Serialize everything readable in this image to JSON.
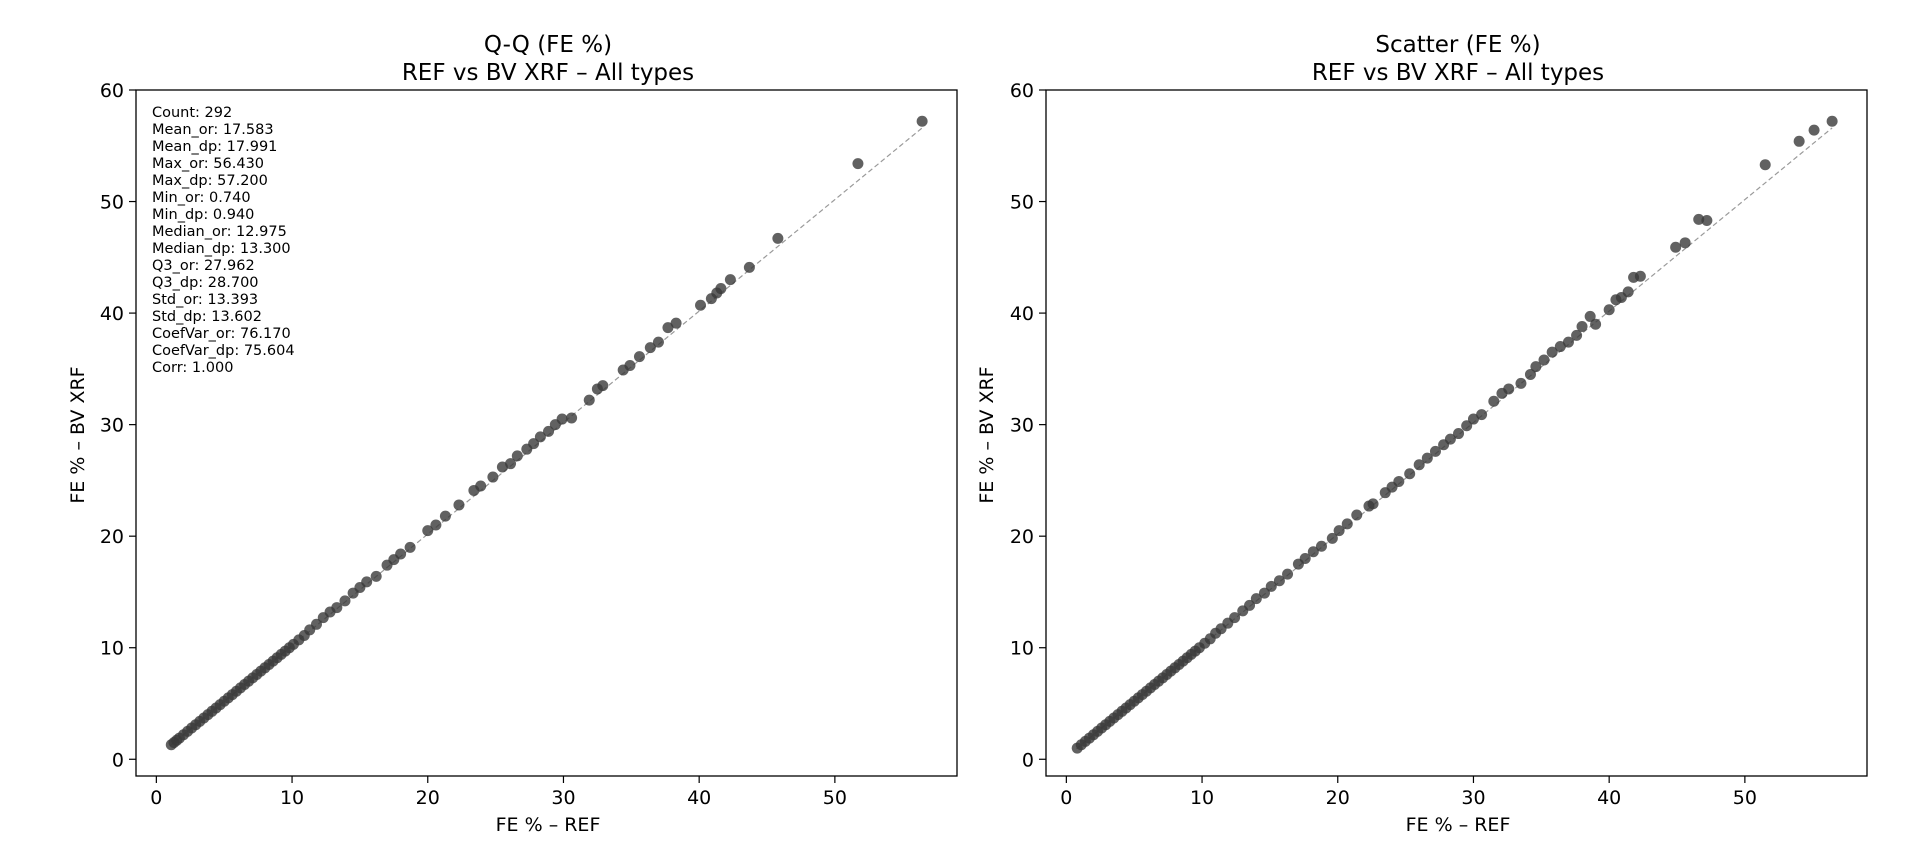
{
  "colors": {
    "marker": "#3a3a3a",
    "reference_line": "#9a9a9a",
    "axes": "#000000"
  },
  "chart_data": [
    {
      "type": "scatter",
      "variant": "qq",
      "title_line1": "Q-Q (FE %)",
      "title_line2": "REF vs BV XRF – All types",
      "xlabel": "FE % – REF",
      "ylabel": "FE % – BV XRF",
      "xlim": [
        -1.5,
        59.0
      ],
      "ylim": [
        -1.5,
        60.0
      ],
      "xticks": [
        0,
        10,
        20,
        30,
        40,
        50
      ],
      "yticks": [
        0,
        10,
        20,
        30,
        40,
        50,
        60
      ],
      "reference_line": [
        [
          1.0,
          1.2
        ],
        [
          56.43,
          56.6
        ]
      ],
      "stats": [
        "Count: 292",
        "Mean_or: 17.583",
        "Mean_dp: 17.991",
        "Max_or: 56.430",
        "Max_dp: 57.200",
        "Min_or: 0.740",
        "Min_dp: 0.940",
        "Median_or: 12.975",
        "Median_dp: 13.300",
        "Q3_or: 27.962",
        "Q3_dp: 28.700",
        "Std_or: 13.393",
        "Std_dp: 13.602",
        "CoefVar_or: 76.170",
        "CoefVar_dp: 75.604",
        "Corr: 1.000"
      ],
      "points": [
        [
          1.1,
          1.3
        ],
        [
          1.3,
          1.5
        ],
        [
          1.5,
          1.7
        ],
        [
          1.7,
          1.9
        ],
        [
          2.0,
          2.2
        ],
        [
          2.3,
          2.5
        ],
        [
          2.6,
          2.8
        ],
        [
          2.9,
          3.1
        ],
        [
          3.2,
          3.4
        ],
        [
          3.5,
          3.7
        ],
        [
          3.8,
          4.0
        ],
        [
          4.1,
          4.3
        ],
        [
          4.4,
          4.6
        ],
        [
          4.7,
          4.9
        ],
        [
          5.0,
          5.2
        ],
        [
          5.3,
          5.5
        ],
        [
          5.6,
          5.8
        ],
        [
          5.9,
          6.1
        ],
        [
          6.2,
          6.4
        ],
        [
          6.5,
          6.7
        ],
        [
          6.8,
          7.0
        ],
        [
          7.1,
          7.3
        ],
        [
          7.4,
          7.6
        ],
        [
          7.7,
          7.9
        ],
        [
          8.0,
          8.2
        ],
        [
          8.3,
          8.5
        ],
        [
          8.6,
          8.8
        ],
        [
          8.9,
          9.1
        ],
        [
          9.2,
          9.4
        ],
        [
          9.5,
          9.7
        ],
        [
          9.8,
          10.0
        ],
        [
          10.1,
          10.3
        ],
        [
          10.5,
          10.7
        ],
        [
          10.9,
          11.1
        ],
        [
          11.3,
          11.6
        ],
        [
          11.8,
          12.1
        ],
        [
          12.3,
          12.7
        ],
        [
          12.8,
          13.2
        ],
        [
          13.3,
          13.6
        ],
        [
          13.9,
          14.2
        ],
        [
          14.5,
          14.9
        ],
        [
          15.0,
          15.4
        ],
        [
          15.5,
          15.9
        ],
        [
          16.2,
          16.4
        ],
        [
          17.0,
          17.4
        ],
        [
          17.5,
          17.9
        ],
        [
          18.0,
          18.4
        ],
        [
          18.7,
          19.0
        ],
        [
          20.0,
          20.5
        ],
        [
          20.6,
          21.0
        ],
        [
          21.3,
          21.8
        ],
        [
          22.3,
          22.8
        ],
        [
          23.4,
          24.1
        ],
        [
          23.9,
          24.5
        ],
        [
          24.8,
          25.3
        ],
        [
          25.5,
          26.2
        ],
        [
          26.1,
          26.5
        ],
        [
          26.6,
          27.2
        ],
        [
          27.3,
          27.8
        ],
        [
          27.8,
          28.3
        ],
        [
          28.3,
          28.9
        ],
        [
          28.9,
          29.4
        ],
        [
          29.4,
          30.0
        ],
        [
          29.9,
          30.5
        ],
        [
          30.6,
          30.6
        ],
        [
          31.9,
          32.2
        ],
        [
          32.5,
          33.2
        ],
        [
          32.9,
          33.5
        ],
        [
          34.4,
          34.9
        ],
        [
          34.9,
          35.3
        ],
        [
          35.6,
          36.1
        ],
        [
          36.4,
          36.9
        ],
        [
          37.0,
          37.4
        ],
        [
          37.7,
          38.7
        ],
        [
          38.3,
          39.1
        ],
        [
          40.1,
          40.7
        ],
        [
          40.9,
          41.3
        ],
        [
          41.3,
          41.8
        ],
        [
          41.6,
          42.2
        ],
        [
          42.3,
          43.0
        ],
        [
          43.7,
          44.1
        ],
        [
          45.8,
          46.7
        ],
        [
          51.7,
          53.4
        ],
        [
          56.43,
          57.2
        ]
      ]
    },
    {
      "type": "scatter",
      "variant": "paired",
      "title_line1": "Scatter (FE %)",
      "title_line2": "REF vs BV XRF – All types",
      "xlabel": "FE % – REF",
      "ylabel": "FE % – BV XRF",
      "xlim": [
        -1.5,
        59.0
      ],
      "ylim": [
        -1.5,
        60.0
      ],
      "xticks": [
        0,
        10,
        20,
        30,
        40,
        50
      ],
      "yticks": [
        0,
        10,
        20,
        30,
        40,
        50,
        60
      ],
      "reference_line": [
        [
          0.74,
          0.94
        ],
        [
          56.43,
          56.6
        ]
      ],
      "points": [
        [
          0.8,
          1.0
        ],
        [
          1.1,
          1.3
        ],
        [
          1.4,
          1.6
        ],
        [
          1.7,
          1.9
        ],
        [
          2.0,
          2.2
        ],
        [
          2.3,
          2.5
        ],
        [
          2.6,
          2.8
        ],
        [
          2.9,
          3.1
        ],
        [
          3.2,
          3.4
        ],
        [
          3.5,
          3.7
        ],
        [
          3.8,
          4.0
        ],
        [
          4.1,
          4.3
        ],
        [
          4.4,
          4.6
        ],
        [
          4.7,
          4.9
        ],
        [
          5.0,
          5.2
        ],
        [
          5.3,
          5.5
        ],
        [
          5.6,
          5.8
        ],
        [
          5.9,
          6.1
        ],
        [
          6.2,
          6.4
        ],
        [
          6.5,
          6.7
        ],
        [
          6.8,
          7.0
        ],
        [
          7.1,
          7.3
        ],
        [
          7.4,
          7.6
        ],
        [
          7.7,
          7.9
        ],
        [
          8.0,
          8.2
        ],
        [
          8.3,
          8.5
        ],
        [
          8.6,
          8.8
        ],
        [
          8.9,
          9.1
        ],
        [
          9.2,
          9.4
        ],
        [
          9.5,
          9.7
        ],
        [
          9.8,
          10.0
        ],
        [
          10.2,
          10.4
        ],
        [
          10.6,
          10.8
        ],
        [
          11.0,
          11.3
        ],
        [
          11.4,
          11.7
        ],
        [
          11.9,
          12.2
        ],
        [
          12.4,
          12.7
        ],
        [
          13.0,
          13.3
        ],
        [
          13.5,
          13.8
        ],
        [
          14.0,
          14.4
        ],
        [
          14.6,
          14.9
        ],
        [
          15.1,
          15.5
        ],
        [
          15.7,
          16.0
        ],
        [
          16.3,
          16.6
        ],
        [
          17.1,
          17.5
        ],
        [
          17.6,
          18.0
        ],
        [
          18.2,
          18.6
        ],
        [
          18.8,
          19.1
        ],
        [
          19.6,
          19.8
        ],
        [
          20.1,
          20.5
        ],
        [
          20.7,
          21.1
        ],
        [
          21.4,
          21.9
        ],
        [
          22.3,
          22.7
        ],
        [
          22.6,
          22.9
        ],
        [
          23.5,
          23.9
        ],
        [
          24.0,
          24.4
        ],
        [
          24.5,
          24.9
        ],
        [
          25.3,
          25.6
        ],
        [
          26.0,
          26.4
        ],
        [
          26.6,
          27.0
        ],
        [
          27.2,
          27.6
        ],
        [
          27.8,
          28.2
        ],
        [
          28.3,
          28.7
        ],
        [
          28.9,
          29.2
        ],
        [
          29.5,
          29.9
        ],
        [
          30.0,
          30.5
        ],
        [
          30.6,
          30.9
        ],
        [
          31.5,
          32.1
        ],
        [
          32.1,
          32.8
        ],
        [
          32.6,
          33.2
        ],
        [
          33.5,
          33.7
        ],
        [
          34.2,
          34.5
        ],
        [
          34.6,
          35.2
        ],
        [
          35.2,
          35.8
        ],
        [
          35.8,
          36.5
        ],
        [
          36.4,
          37.0
        ],
        [
          37.0,
          37.4
        ],
        [
          37.6,
          38.0
        ],
        [
          38.0,
          38.8
        ],
        [
          38.6,
          39.7
        ],
        [
          39.0,
          39.0
        ],
        [
          40.0,
          40.3
        ],
        [
          40.5,
          41.2
        ],
        [
          40.9,
          41.4
        ],
        [
          41.4,
          41.9
        ],
        [
          41.8,
          43.2
        ],
        [
          42.3,
          43.3
        ],
        [
          44.9,
          45.9
        ],
        [
          45.6,
          46.3
        ],
        [
          46.6,
          48.4
        ],
        [
          47.2,
          48.3
        ],
        [
          51.5,
          53.3
        ],
        [
          54.0,
          55.4
        ],
        [
          55.1,
          56.4
        ],
        [
          56.43,
          57.2
        ]
      ]
    }
  ]
}
